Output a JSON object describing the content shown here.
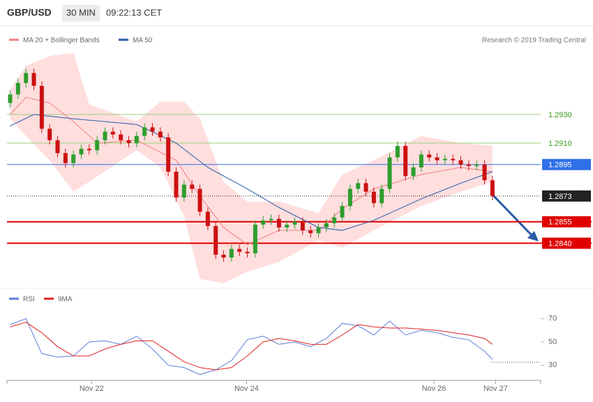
{
  "header": {
    "symbol": "GBP/USD",
    "interval": "30 MIN",
    "time": "09:22:13 CET",
    "credit": "Research © 2019 Trading Central"
  },
  "chart_data": [
    {
      "type": "candlestick",
      "legend": [
        {
          "name": "MA 20 + Bollinger Bands",
          "color": "#f08080"
        },
        {
          "name": "MA 50",
          "color": "#2a5aa8"
        }
      ],
      "xlim": [
        -0.4,
        67.1
      ],
      "ylim": [
        1.281,
        1.29905
      ],
      "up_color": "#2e9e2e",
      "down_color": "#cc1111",
      "open": [
        1.2938,
        1.2944,
        1.2952,
        1.2959,
        1.295,
        1.292,
        1.2912,
        1.2903,
        1.2896,
        1.2902,
        1.2906,
        1.2905,
        1.2912,
        1.2918,
        1.2916,
        1.2912,
        1.291,
        1.2915,
        1.2921,
        1.2918,
        1.2914,
        1.289,
        1.2872,
        1.2881,
        1.2878,
        1.2862,
        1.2852,
        1.2832,
        1.283,
        1.2836,
        1.2834,
        1.2833,
        1.2853,
        1.2856,
        1.2857,
        1.2851,
        1.2853,
        1.2855,
        1.2849,
        1.2847,
        1.2851,
        1.2854,
        1.2858,
        1.2866,
        1.2878,
        1.2882,
        1.2876,
        1.2868,
        1.2878,
        1.29,
        1.2908,
        1.2887,
        1.2893,
        1.2902,
        1.29,
        1.2898,
        1.2899,
        1.2898,
        1.2895,
        1.2894,
        1.2895,
        1.2884
      ],
      "high": [
        1.2947,
        1.2955,
        1.2962,
        1.2962,
        1.2953,
        1.2923,
        1.2915,
        1.2906,
        1.2905,
        1.2909,
        1.2909,
        1.2915,
        1.2921,
        1.2921,
        1.2919,
        1.2915,
        1.2918,
        1.2924,
        1.2924,
        1.2921,
        1.2917,
        1.2893,
        1.2884,
        1.2884,
        1.2881,
        1.2865,
        1.2855,
        1.2835,
        1.2839,
        1.2839,
        1.2837,
        1.2856,
        1.2859,
        1.286,
        1.286,
        1.2856,
        1.2858,
        1.2858,
        1.2852,
        1.2854,
        1.2857,
        1.2861,
        1.2869,
        1.2881,
        1.2885,
        1.2885,
        1.2879,
        1.2881,
        1.2903,
        1.2911,
        1.2911,
        1.2896,
        1.2905,
        1.2905,
        1.2903,
        1.2902,
        1.2902,
        1.2901,
        1.2898,
        1.2898,
        1.2898,
        1.2887
      ],
      "low": [
        1.2935,
        1.2941,
        1.2949,
        1.2947,
        1.2917,
        1.2909,
        1.29,
        1.2893,
        1.2893,
        1.2899,
        1.2902,
        1.2902,
        1.2909,
        1.2913,
        1.2909,
        1.2907,
        1.2907,
        1.2912,
        1.2915,
        1.2911,
        1.2887,
        1.2869,
        1.2869,
        1.2875,
        1.2859,
        1.2849,
        1.2829,
        1.2827,
        1.2827,
        1.2831,
        1.283,
        1.283,
        1.285,
        1.2853,
        1.2848,
        1.2848,
        1.285,
        1.2846,
        1.2844,
        1.2844,
        1.2848,
        1.2851,
        1.2855,
        1.2863,
        1.2875,
        1.2873,
        1.2865,
        1.2865,
        1.2875,
        1.2897,
        1.2884,
        1.2884,
        1.289,
        1.2897,
        1.2895,
        1.2895,
        1.2895,
        1.2892,
        1.2891,
        1.2891,
        1.2881,
        1.287
      ],
      "close": [
        1.2944,
        1.2952,
        1.2959,
        1.295,
        1.292,
        1.2912,
        1.2903,
        1.2896,
        1.2902,
        1.2906,
        1.2905,
        1.2912,
        1.2918,
        1.2916,
        1.2912,
        1.291,
        1.2915,
        1.2921,
        1.2918,
        1.2914,
        1.289,
        1.2872,
        1.2881,
        1.2878,
        1.2862,
        1.2852,
        1.2832,
        1.283,
        1.2836,
        1.2834,
        1.2833,
        1.2853,
        1.2856,
        1.2857,
        1.2851,
        1.2853,
        1.2855,
        1.2849,
        1.2847,
        1.2851,
        1.2854,
        1.2858,
        1.2866,
        1.2878,
        1.2882,
        1.2876,
        1.2868,
        1.2878,
        1.29,
        1.2908,
        1.2887,
        1.2893,
        1.2902,
        1.29,
        1.2898,
        1.2899,
        1.2898,
        1.2895,
        1.2894,
        1.2895,
        1.2884,
        1.2873
      ],
      "bands": {
        "color": "#ffdede",
        "x": [
          0,
          2,
          5,
          8,
          10,
          16,
          19,
          22,
          24,
          27,
          30,
          34,
          39,
          42,
          46,
          52,
          57,
          61
        ],
        "upper": [
          1.2947,
          1.2964,
          1.2971,
          1.2973,
          1.2937,
          1.2925,
          1.2939,
          1.2939,
          1.2927,
          1.2883,
          1.2869,
          1.2869,
          1.2861,
          1.2888,
          1.2898,
          1.2915,
          1.291,
          1.2908
        ],
        "lower": [
          1.2927,
          1.2915,
          1.2898,
          1.2876,
          1.2883,
          1.2905,
          1.2893,
          1.2859,
          1.2815,
          1.2812,
          1.282,
          1.2827,
          1.2842,
          1.2837,
          1.2849,
          1.2866,
          1.2876,
          1.2883
        ]
      },
      "lines": [
        {
          "color": "#f08080",
          "x": [
            0,
            2,
            5,
            8,
            11,
            16,
            21,
            24,
            27,
            30,
            34,
            39,
            42,
            46,
            52,
            57,
            61
          ],
          "values": [
            1.293,
            1.2942,
            1.2938,
            1.2925,
            1.291,
            1.2912,
            1.2898,
            1.2873,
            1.2851,
            1.2839,
            1.2849,
            1.2849,
            1.2864,
            1.2878,
            1.2888,
            1.2893,
            1.289
          ]
        },
        {
          "color": "#2a5aa8",
          "x": [
            0,
            3,
            8,
            16,
            21,
            25,
            30,
            34,
            39,
            42,
            46,
            52,
            57,
            61
          ],
          "values": [
            1.2922,
            1.293,
            1.2927,
            1.2923,
            1.291,
            1.2893,
            1.2878,
            1.2865,
            1.2851,
            1.2849,
            1.2856,
            1.2871,
            1.2882,
            1.289
          ]
        }
      ],
      "levels": [
        {
          "value": 1.293,
          "label": "1.2930",
          "color": "#9acd7a",
          "text_color": "#3a9a1a",
          "box": false
        },
        {
          "value": 1.291,
          "label": "1.2910",
          "color": "#9acd7a",
          "text_color": "#3a9a1a",
          "box": false
        },
        {
          "value": 1.2895,
          "color": "#2f6fe8",
          "text_color": "#ffffff",
          "box": true
        },
        {
          "value": 1.2873,
          "color": "#222222",
          "text_color": "#ffffff",
          "box": true,
          "dotted": true
        },
        {
          "value": 1.2855,
          "color": "#e00000",
          "text_color": "#ffffff",
          "box": true
        },
        {
          "value": 1.284,
          "label": "1.2840",
          "color": "#e00000",
          "text_color": "#ffffff",
          "box": true
        }
      ]
    },
    {
      "type": "line",
      "xlim": [
        -0.4,
        67.1
      ],
      "ylim": [
        17,
        80
      ],
      "yticks": [
        30,
        50,
        70
      ],
      "xticks": [
        {
          "value": 10.3,
          "label": "Nov 22"
        },
        {
          "value": 29.9,
          "label": "Nov 24"
        },
        {
          "value": 53.6,
          "label": "Nov 26"
        },
        {
          "value": 61.4,
          "label": "Nov 27"
        }
      ],
      "x": [
        0,
        2,
        4,
        6,
        8,
        10,
        12,
        14,
        16,
        18,
        20,
        22,
        24,
        26,
        28,
        30,
        32,
        34,
        36,
        38,
        40,
        42,
        44,
        46,
        48,
        50,
        52,
        54,
        56,
        58,
        60,
        61
      ],
      "series": [
        {
          "name": "RSI",
          "color": "#5b7fd6",
          "values": [
            65,
            70,
            40,
            37,
            38,
            50,
            51,
            48,
            55,
            44,
            30,
            28,
            22,
            26,
            34,
            52,
            55,
            48,
            50,
            46,
            53,
            66,
            64,
            56,
            68,
            56,
            60,
            58,
            54,
            52,
            42,
            35
          ]
        },
        {
          "name": "9MA",
          "color": "#e02020",
          "values": [
            63,
            67,
            58,
            46,
            38,
            38,
            44,
            48,
            51,
            51,
            42,
            33,
            28,
            26,
            28,
            38,
            50,
            53,
            51,
            48,
            48,
            56,
            65,
            63,
            62,
            62,
            61,
            60,
            58,
            56,
            53,
            48
          ]
        }
      ]
    }
  ]
}
